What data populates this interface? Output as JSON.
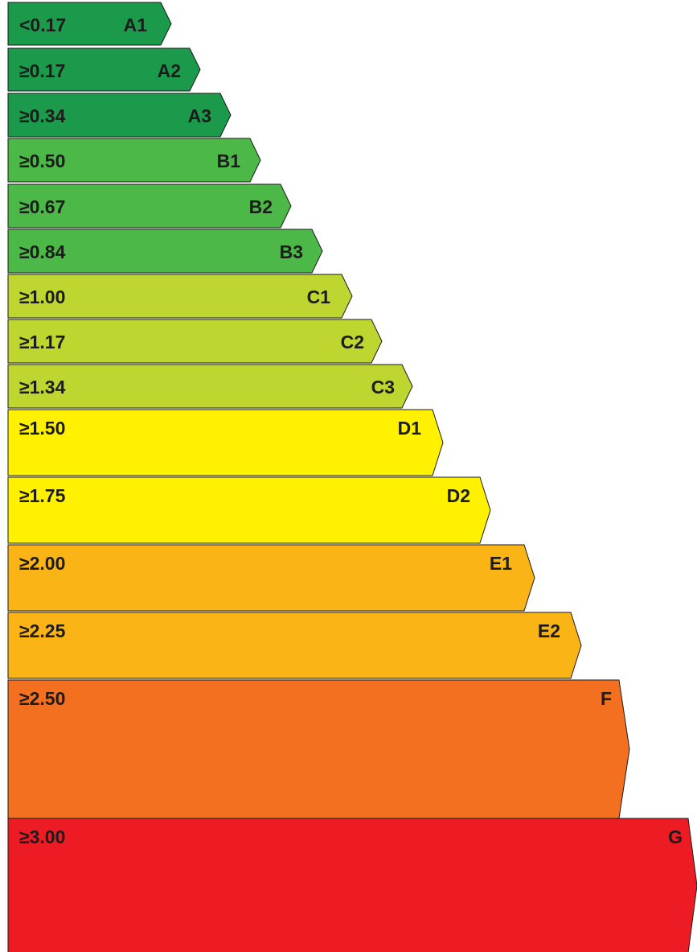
{
  "energy_scale": {
    "bands": [
      {
        "grade": "A1",
        "threshold": "<0.17",
        "color": "#1a9a4a"
      },
      {
        "grade": "A2",
        "threshold": "≥0.17",
        "color": "#1a9a4a"
      },
      {
        "grade": "A3",
        "threshold": "≥0.34",
        "color": "#1a9a4a"
      },
      {
        "grade": "B1",
        "threshold": "≥0.50",
        "color": "#4cb848"
      },
      {
        "grade": "B2",
        "threshold": "≥0.67",
        "color": "#4cb848"
      },
      {
        "grade": "B3",
        "threshold": "≥0.84",
        "color": "#4cb848"
      },
      {
        "grade": "C1",
        "threshold": "≥1.00",
        "color": "#bfd630"
      },
      {
        "grade": "C2",
        "threshold": "≥1.17",
        "color": "#bfd630"
      },
      {
        "grade": "C3",
        "threshold": "≥1.34",
        "color": "#bfd630"
      },
      {
        "grade": "D1",
        "threshold": "≥1.50",
        "color": "#fff100"
      },
      {
        "grade": "D2",
        "threshold": "≥1.75",
        "color": "#fff100"
      },
      {
        "grade": "E1",
        "threshold": "≥2.00",
        "color": "#fbb416"
      },
      {
        "grade": "E2",
        "threshold": "≥2.25",
        "color": "#fbb416"
      },
      {
        "grade": "F",
        "threshold": "≥2.50",
        "color": "#f37021"
      },
      {
        "grade": "G",
        "threshold": "≥3.00",
        "color": "#ed1c24"
      }
    ]
  }
}
